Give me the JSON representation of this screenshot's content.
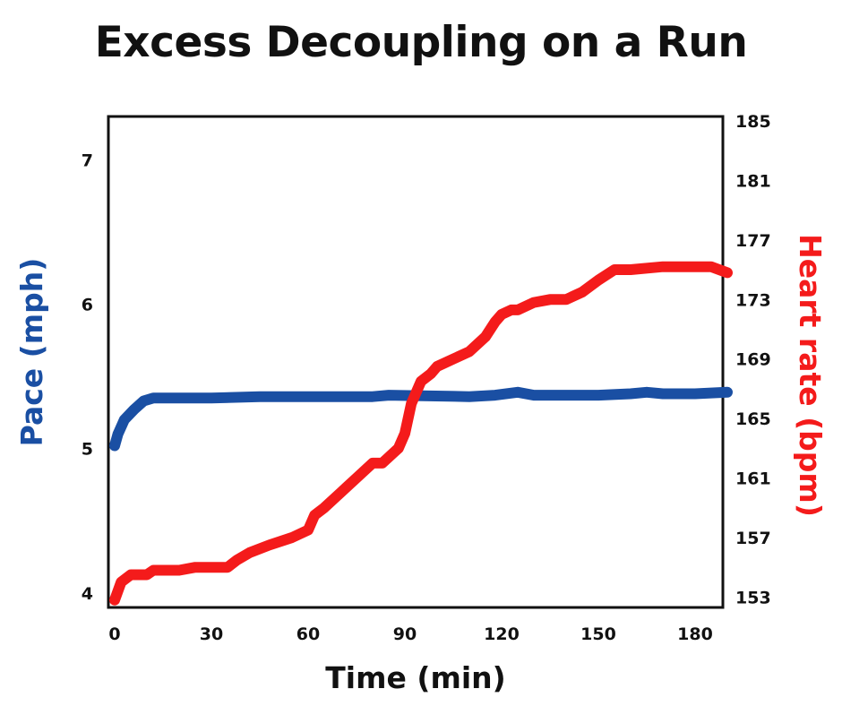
{
  "chart_data": {
    "type": "line",
    "title": "Excess Decoupling on a Run",
    "xlabel": "Time (min)",
    "ylabel_left": "Pace (mph)",
    "ylabel_right": "Heart rate (bpm)",
    "xlim": [
      0,
      190
    ],
    "ylim_left": [
      3.9,
      7.3
    ],
    "ylim_right": [
      152.3,
      185.3
    ],
    "x_ticks": [
      "0",
      "30",
      "60",
      "90",
      "120",
      "150",
      "180"
    ],
    "y_ticks_left": [
      "4",
      "5",
      "6",
      "7"
    ],
    "y_ticks_right": [
      "153",
      "157",
      "161",
      "165",
      "169",
      "173",
      "177",
      "181",
      "185"
    ],
    "grid": false,
    "colors": {
      "pace": "#1a4fa3",
      "heart_rate": "#f41b1b"
    },
    "series": [
      {
        "name": "Pace (mph)",
        "axis": "left",
        "x": [
          0,
          1,
          3,
          6,
          9,
          12,
          30,
          45,
          80,
          85,
          110,
          118,
          125,
          130,
          150,
          160,
          165,
          170,
          180,
          190
        ],
        "values": [
          5.02,
          5.1,
          5.2,
          5.27,
          5.33,
          5.35,
          5.35,
          5.36,
          5.36,
          5.37,
          5.36,
          5.37,
          5.39,
          5.37,
          5.37,
          5.38,
          5.39,
          5.38,
          5.38,
          5.39
        ]
      },
      {
        "name": "Heart rate (bpm)",
        "axis": "right",
        "x": [
          0,
          2,
          5,
          10,
          12,
          20,
          25,
          35,
          38,
          42,
          48,
          55,
          60,
          62,
          65,
          70,
          75,
          80,
          83,
          88,
          90,
          91,
          92,
          95,
          98,
          100,
          105,
          110,
          115,
          118,
          120,
          123,
          125,
          130,
          135,
          140,
          145,
          150,
          155,
          160,
          170,
          180,
          185,
          190
        ],
        "values": [
          152.8,
          154,
          154.5,
          154.5,
          154.8,
          154.8,
          155,
          155,
          155.5,
          156,
          156.5,
          157,
          157.5,
          158.5,
          159,
          160,
          161,
          162,
          162,
          163,
          164,
          165,
          166,
          167.5,
          168,
          168.5,
          169,
          169.5,
          170.5,
          171.5,
          172,
          172.3,
          172.3,
          172.8,
          173,
          173,
          173.5,
          174.3,
          175,
          175,
          175.2,
          175.2,
          175.2,
          174.8
        ]
      }
    ]
  }
}
